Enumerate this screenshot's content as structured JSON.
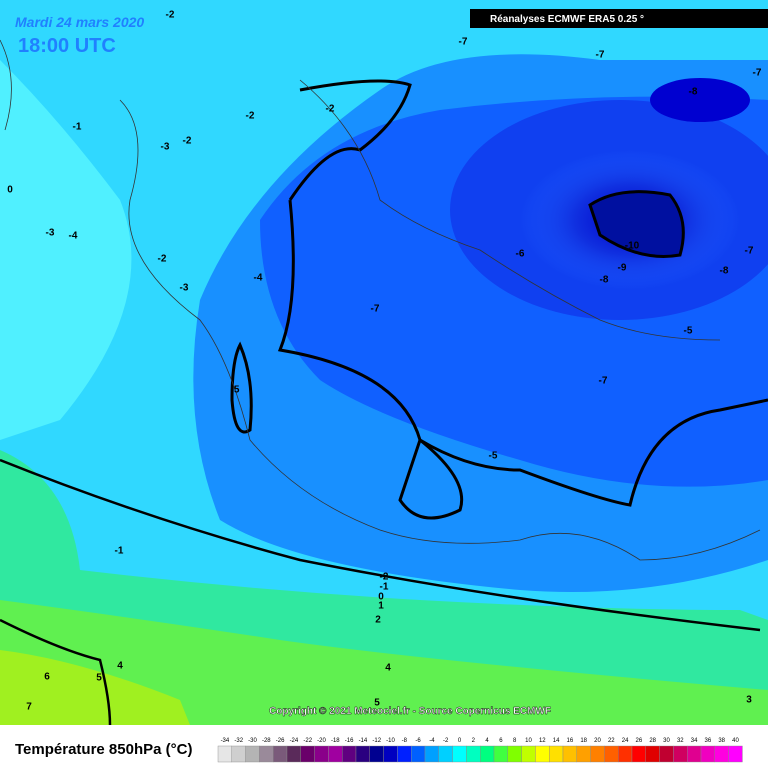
{
  "header": {
    "date": "Mardi 24 mars 2020",
    "time": "18:00 UTC",
    "source_box": "Réanalyses ECMWF ERA5 0.25 °",
    "copyright": "Copyright © 2021 Meteociel.fr - Source Copernicus ECMWF"
  },
  "contour_labels": [
    -7,
    -7,
    -7,
    -8,
    -10,
    -9,
    -8,
    -8,
    -7,
    -6,
    -5,
    -7,
    -7,
    -5,
    -5,
    -4,
    -3,
    -2,
    -4,
    -3,
    -1,
    -2,
    -2,
    -2,
    -3,
    -1,
    -2,
    -1,
    0,
    1,
    2,
    4,
    4,
    5,
    6,
    7,
    5,
    3,
    0,
    -2
  ],
  "legend": {
    "title": "Température 850hPa (°C)",
    "labels": [
      -34,
      -32,
      -30,
      -28,
      -26,
      -24,
      -22,
      -20,
      -18,
      -16,
      -14,
      -12,
      -10,
      -8,
      -6,
      -4,
      -2,
      0,
      2,
      4,
      6,
      8,
      10,
      12,
      14,
      16,
      18,
      20,
      22,
      24,
      26,
      28,
      30,
      32,
      34,
      36,
      38,
      40
    ],
    "colors": [
      "#e6e6e6",
      "#cfcfcf",
      "#b4b4b4",
      "#9a8a9a",
      "#7a5a7a",
      "#5a2a5a",
      "#6a006a",
      "#8a008a",
      "#a000a0",
      "#600080",
      "#2a0080",
      "#000090",
      "#0000c0",
      "#0020ff",
      "#0060ff",
      "#00a0ff",
      "#00d0ff",
      "#00ffff",
      "#00ffc0",
      "#00ff80",
      "#40ff40",
      "#80ff00",
      "#c0ff00",
      "#ffff00",
      "#ffe000",
      "#ffc000",
      "#ffa000",
      "#ff8000",
      "#ff6000",
      "#ff3000",
      "#ff0000",
      "#e00000",
      "#c00030",
      "#d00060",
      "#e00090",
      "#f000c0",
      "#ff00e0",
      "#ff00ff"
    ]
  }
}
